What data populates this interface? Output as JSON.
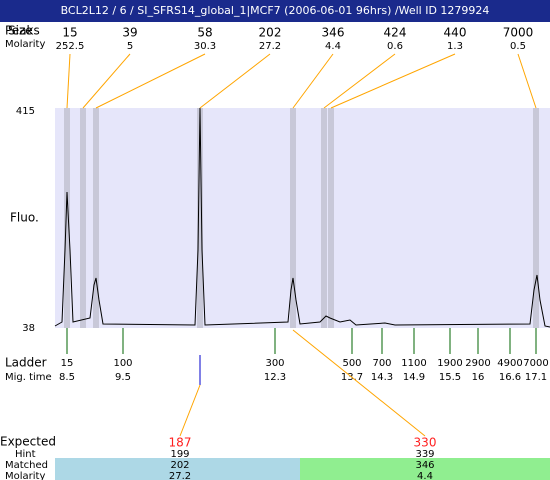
{
  "header": {
    "title": "BCL2L12 / 6 / SI_SFRS14_global_1|MCF7 (2006-06-01 96hrs) /Well ID 1279924"
  },
  "peaks": {
    "labels": [
      "Peaks",
      "Size"
    ],
    "molarity_label": "Molarity",
    "items": [
      {
        "size": "15",
        "molarity": "252.5"
      },
      {
        "size": "39",
        "molarity": "5"
      },
      {
        "size": "58",
        "molarity": "30.3"
      },
      {
        "size": "202",
        "molarity": "27.2"
      },
      {
        "size": "346",
        "molarity": "4.4"
      },
      {
        "size": "424",
        "molarity": "0.6"
      },
      {
        "size": "440",
        "molarity": "1.3"
      },
      {
        "size": "7000",
        "molarity": "0.5"
      }
    ]
  },
  "axis": {
    "top": "415",
    "bottom": "38",
    "label": "Fluo."
  },
  "ladder": {
    "label": "Ladder",
    "time_label": "Mig. time",
    "items": [
      {
        "size": "15",
        "time": "8.5"
      },
      {
        "size": "100",
        "time": "9.5"
      },
      {
        "size": "300",
        "time": "12.3"
      },
      {
        "size": "500",
        "time": "13.7"
      },
      {
        "size": "700",
        "time": "14.3"
      },
      {
        "size": "1100",
        "time": "14.9"
      },
      {
        "size": "1900",
        "time": "15.5"
      },
      {
        "size": "2900",
        "time": "16"
      },
      {
        "size": "4900",
        "time": "16.6"
      },
      {
        "size": "7000",
        "time": "17.1"
      }
    ]
  },
  "expected": {
    "label": "Expected",
    "hint_label": "Hint",
    "matched_label": "Matched",
    "molarity_label": "Molarity",
    "items": [
      {
        "expected": "187",
        "hint": "199",
        "matched": "202",
        "molarity": "27.2"
      },
      {
        "expected": "330",
        "hint": "339",
        "matched": "346",
        "molarity": "4.4"
      }
    ]
  }
}
